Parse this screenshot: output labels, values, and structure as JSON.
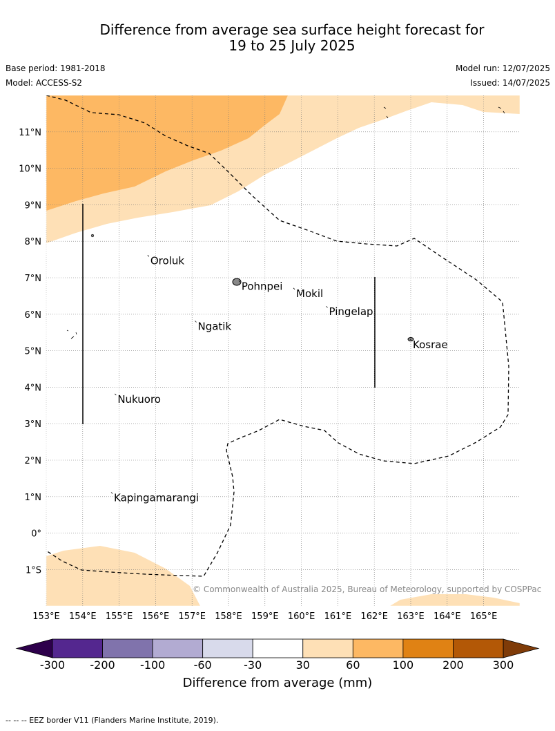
{
  "title_line1": "Difference from average sea surface height forecast for",
  "title_line2": "19 to 25 July 2025",
  "meta": {
    "base_period": "Base period: 1981-2018",
    "model": "Model: ACCESS-S2",
    "model_run": "Model run: 12/07/2025",
    "issued": "Issued: 14/07/2025"
  },
  "map": {
    "lon_range": [
      153,
      166
    ],
    "lat_range": [
      -2,
      12
    ],
    "lon_labels": [
      "153°E",
      "154°E",
      "155°E",
      "156°E",
      "157°E",
      "158°E",
      "159°E",
      "160°E",
      "161°E",
      "162°E",
      "163°E",
      "164°E",
      "165°E"
    ],
    "lat_labels": [
      "1°S",
      "0°",
      "1°N",
      "2°N",
      "3°N",
      "4°N",
      "5°N",
      "6°N",
      "7°N",
      "8°N",
      "9°N",
      "10°N",
      "11°N"
    ],
    "places": [
      {
        "name": "Oroluk",
        "lon": 155.8,
        "lat": 7.6
      },
      {
        "name": "Pohnpei",
        "lon": 158.3,
        "lat": 6.9
      },
      {
        "name": "Mokil",
        "lon": 159.8,
        "lat": 6.7
      },
      {
        "name": "Pingelap",
        "lon": 160.7,
        "lat": 6.2
      },
      {
        "name": "Ngatik",
        "lon": 157.1,
        "lat": 5.8
      },
      {
        "name": "Kosrae",
        "lon": 163.0,
        "lat": 5.3
      },
      {
        "name": "Nukuoro",
        "lon": 154.9,
        "lat": 3.8
      },
      {
        "name": "Kapingamarangi",
        "lon": 154.8,
        "lat": 1.1
      }
    ],
    "copyright": "© Commonwealth of Australia 2025, Bureau of Meteorology, supported by COSPPac"
  },
  "colorbar": {
    "title": "Difference from average (mm)",
    "ticks": [
      "-300",
      "-200",
      "-100",
      "-60",
      "-30",
      "30",
      "60",
      "100",
      "200",
      "300"
    ],
    "colors": [
      "#54278f",
      "#8073ac",
      "#b2abd2",
      "#d8daeb",
      "#ffffff",
      "#fee0b6",
      "#fdb863",
      "#e08214",
      "#b35806"
    ],
    "under_color": "#2d004b",
    "over_color": "#7f3b08"
  },
  "footer_note": "--  --  -- EEZ border V11 (Flanders Marine Institute, 2019)."
}
